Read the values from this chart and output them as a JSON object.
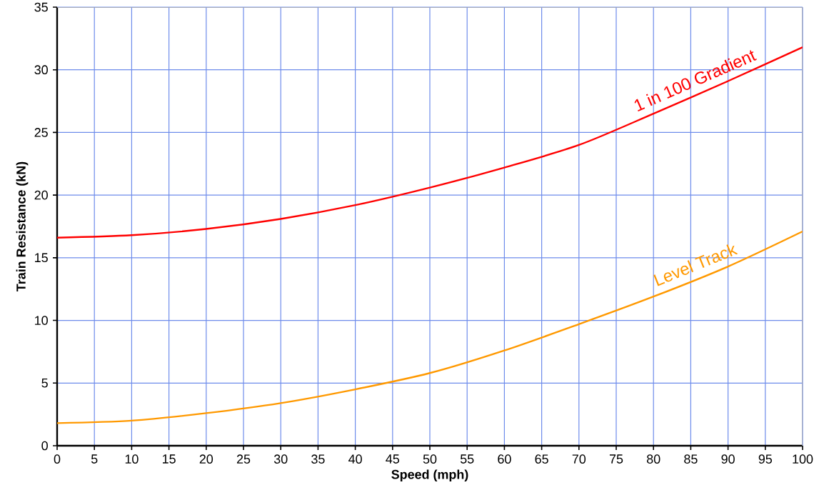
{
  "chart_data": {
    "type": "line",
    "xlabel": "Speed (mph)",
    "ylabel": "Train Resistance (kN)",
    "x": [
      0,
      10,
      20,
      30,
      40,
      50,
      60,
      70,
      80,
      90,
      100
    ],
    "series": [
      {
        "name": "1 in 100 Gradient",
        "color": "#ff0000",
        "values": [
          16.6,
          16.8,
          17.3,
          18.1,
          19.2,
          20.6,
          22.2,
          24.0,
          26.5,
          29.1,
          31.8
        ]
      },
      {
        "name": "Level Track",
        "color": "#ff9900",
        "values": [
          1.8,
          2.0,
          2.6,
          3.4,
          4.5,
          5.8,
          7.6,
          9.7,
          11.9,
          14.3,
          17.1
        ]
      }
    ],
    "xlim": [
      0,
      100
    ],
    "ylim": [
      0,
      35
    ],
    "xticks": [
      0,
      5,
      10,
      15,
      20,
      25,
      30,
      35,
      40,
      45,
      50,
      55,
      60,
      65,
      70,
      75,
      80,
      85,
      90,
      95,
      100
    ],
    "yticks": [
      0,
      5,
      10,
      15,
      20,
      25,
      30,
      35
    ],
    "grid": true,
    "legend": false,
    "marker": "none",
    "line_style": "solid"
  }
}
